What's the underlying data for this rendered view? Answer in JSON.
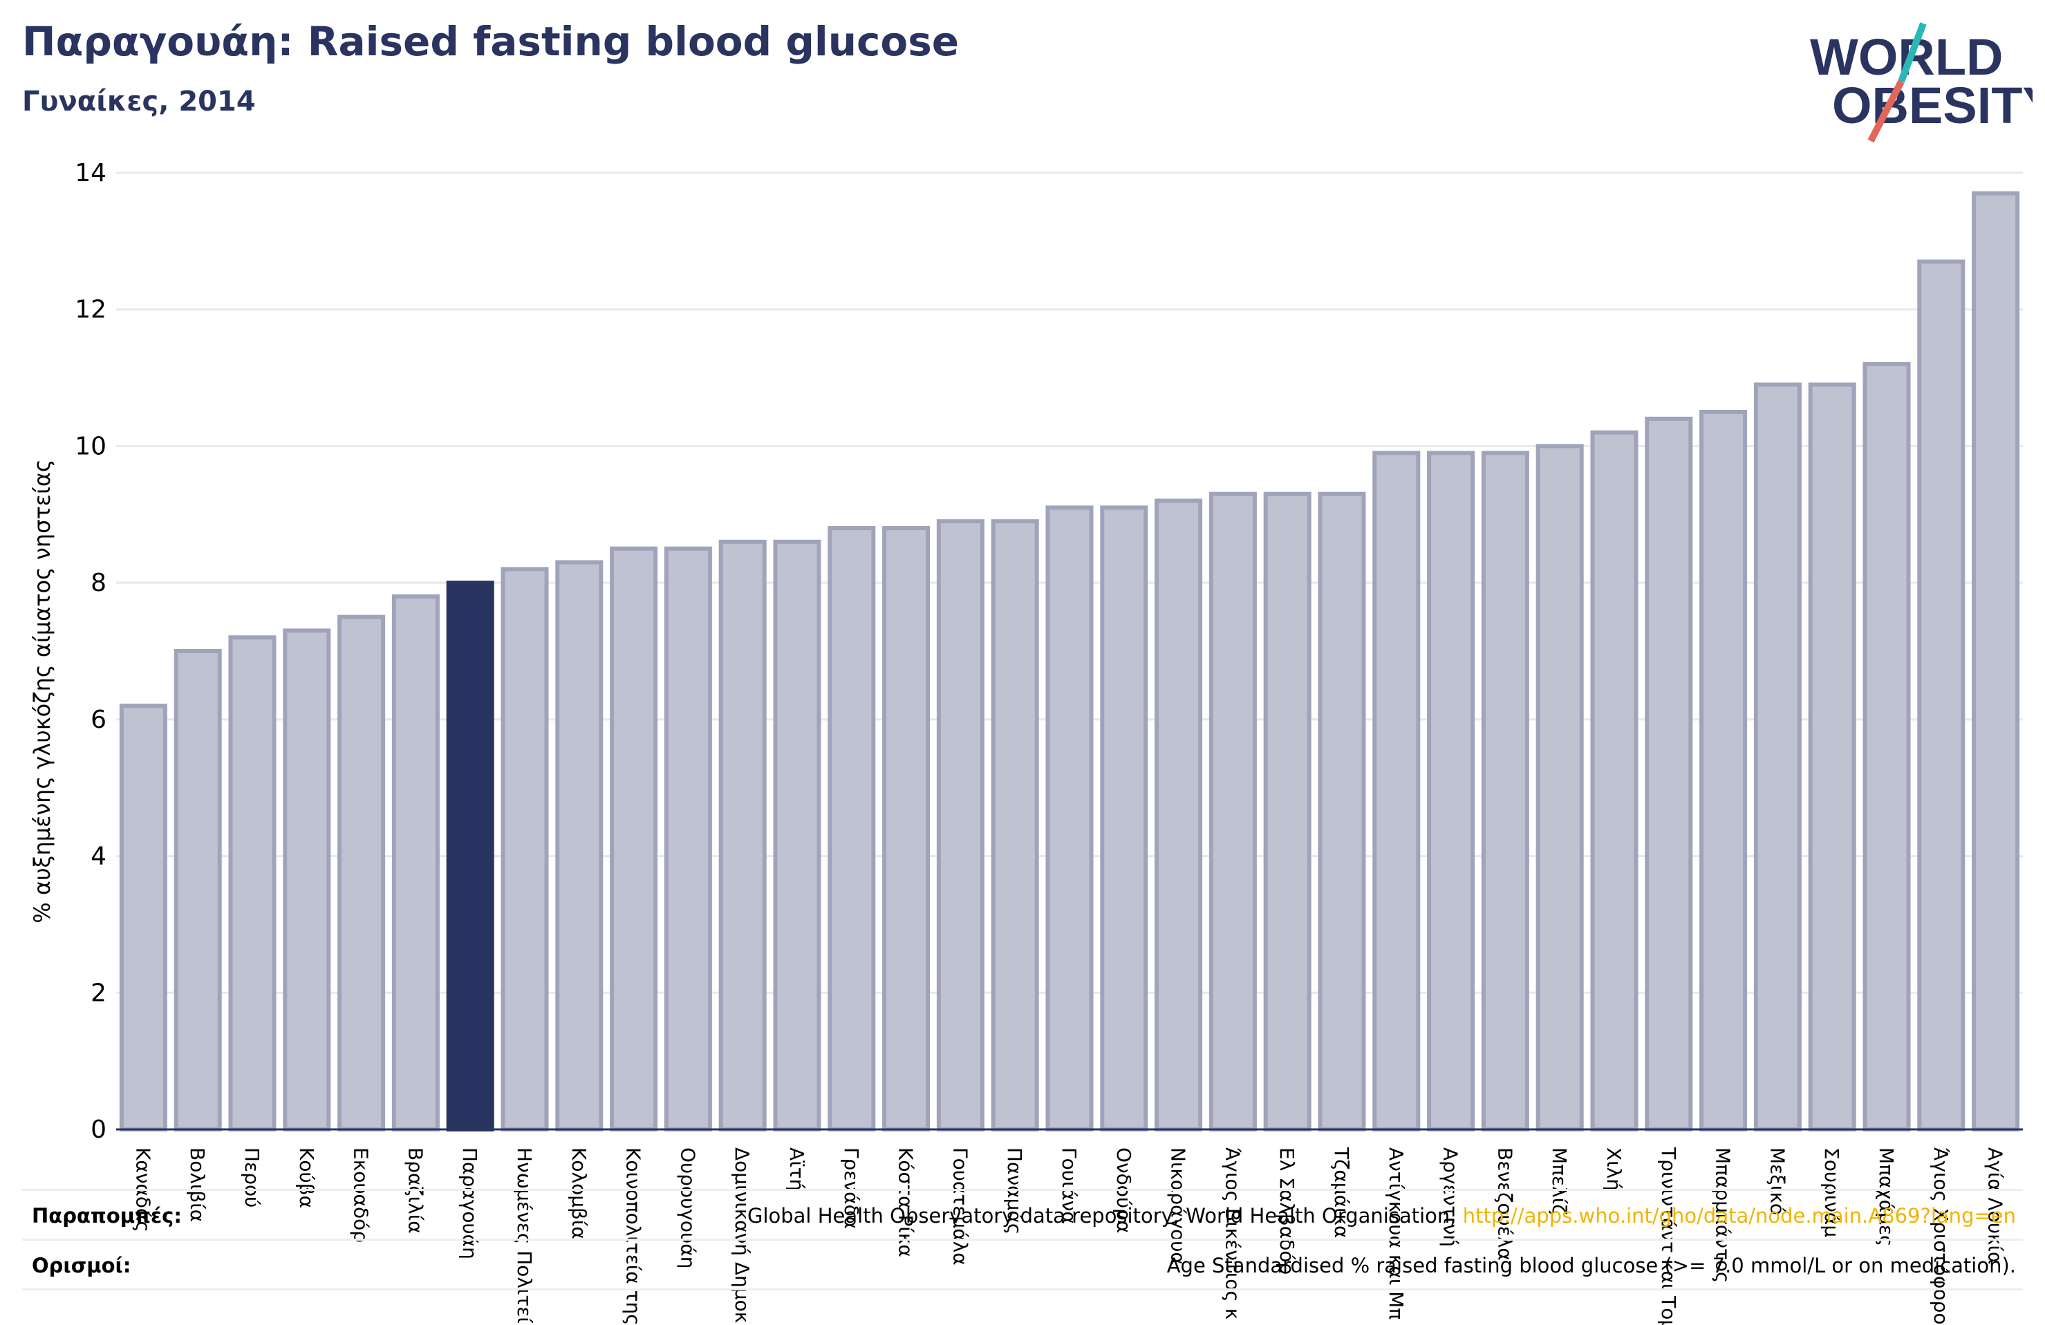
{
  "header": {
    "title": "Παραγουάη: Raised fasting blood glucose",
    "subtitle": "Γυναίκες, 2014"
  },
  "logo": {
    "line1": "WORLD",
    "line2": "OBESITY",
    "slash_top_color": "#2ab7b5",
    "slash_bottom_color": "#e2675a",
    "text_color": "#2a3460"
  },
  "colors": {
    "bar": "#bfc2d0",
    "bar_border": "#9fa4bb",
    "highlight": "#2a3460",
    "axis": "#2a3460",
    "grid": "#e8e8ee",
    "link": "#f0b400"
  },
  "chart_data": {
    "type": "bar",
    "title": "",
    "xlabel": "",
    "ylabel": "% αυξημένης γλυκόζης αίματος νηστείας",
    "ylim": [
      0,
      14
    ],
    "yticks": [
      0,
      2,
      4,
      6,
      8,
      10,
      12,
      14
    ],
    "grid": true,
    "highlight_category": "Παραγουάη",
    "categories": [
      "Καναδάς",
      "Βολιβία",
      "Περού",
      "Κούβα",
      "Εκουαδόρ",
      "Βραζιλία",
      "Παραγουάη",
      "Ηνωμένες Πολιτείες",
      "Κολομβία",
      "Κοινοπολιτεία της Δομινίκας",
      "Ουρουγουάη",
      "Δομινικανή Δημοκρατία",
      "Αϊτή",
      "Γρενάδα",
      "Κόστα Ρίκα",
      "Γουατεμάλα",
      "Παναμάς",
      "Γουιάνα",
      "Ονδούρα",
      "Νικαράγουα",
      "Άγιος Βικέντιος και Γρεναδίνες",
      "Ελ Σαλβαδόρ",
      "Τζαμάικα",
      "Αντίγκουα και Μπαρμπούντα",
      "Αργεντινή",
      "Βενεζουέλα",
      "Μπελίζ",
      "Χιλή",
      "Τρινιντάντ και Τομπάγκο",
      "Μπαρμπάντος",
      "Μεξικό",
      "Σουρινάμ",
      "Μπαχάμες",
      "Άγιος Χριστόφορος και Νέβις",
      "Αγία Λουκία"
    ],
    "tick_labels": [
      "Καναδάς",
      "Βολιβία",
      "Περού",
      "Κούβα",
      "Εκουαδόρ",
      "Βραζιλία",
      "Παραγουάη",
      "Ηνωμένες Πολιτεί",
      "Κολομβία",
      "Κοινοπολιτεία της",
      "Ουρουγουάη",
      "Δομινικανή Δημοκ",
      "Αϊτή",
      "Γρενάδα",
      "Κόστα Ρίκα",
      "Γουατεμάλα",
      "Παναμάς",
      "Γουιάνα",
      "Ονδούρα",
      "Νικαράγουα",
      "Άγιος Βικέντιος κ",
      "Ελ Σαλβαδόρ",
      "Τζαμάικα",
      "Αντίγκουα και Μπ",
      "Αργεντινή",
      "Βενεζουέλα",
      "Μπελίζ",
      "Χιλή",
      "Τρινιντάντ και Τομ",
      "Μπαρμπάντος",
      "Μεξικό",
      "Σουρινάμ",
      "Μπαχάμες",
      "Άγιος Χριστόφορος",
      "Αγία Λουκία"
    ],
    "values": [
      6.2,
      7.0,
      7.2,
      7.3,
      7.5,
      7.8,
      8.0,
      8.2,
      8.3,
      8.5,
      8.5,
      8.6,
      8.6,
      8.8,
      8.8,
      8.9,
      8.9,
      9.1,
      9.1,
      9.2,
      9.3,
      9.3,
      9.3,
      9.9,
      9.9,
      9.9,
      10.0,
      10.2,
      10.4,
      10.5,
      10.9,
      10.9,
      11.2,
      12.7,
      13.7
    ]
  },
  "notes": {
    "references_label": "Παραπομπές:",
    "references_text": "Global Health Observatory data repository, World Health Organisation, ",
    "references_link": "http://apps.who.int/gho/data/node.main.A869?lang=en",
    "definitions_label": "Ορισμοί:",
    "definitions_text": "Age Standardised % raised fasting blood glucose (>= 7.0 mmol/L or on medication)."
  }
}
